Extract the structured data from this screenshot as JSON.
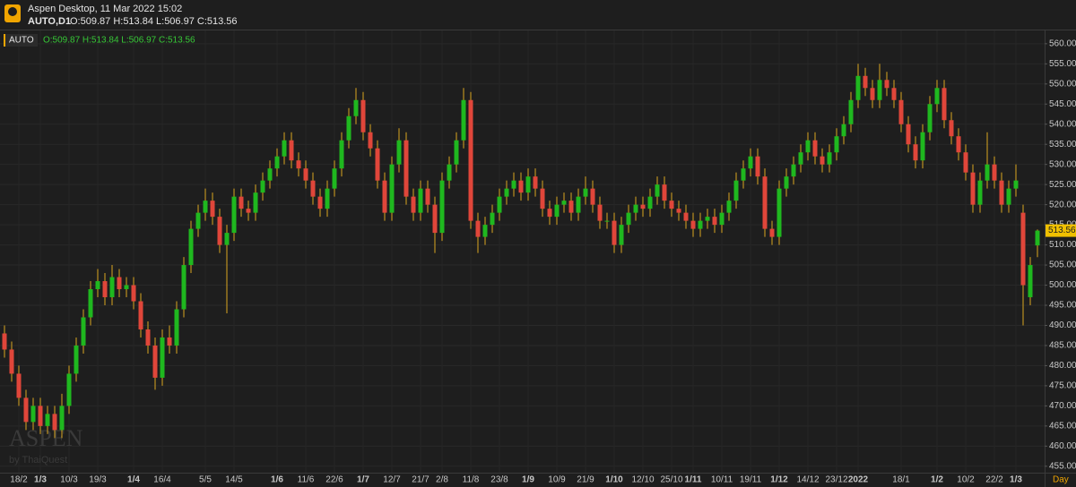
{
  "header": {
    "app": "Aspen Desktop, 11 Mar 2022 15:02",
    "symbol": "AUTO,D1",
    "ohlc": "O:509.87 H:513.84 L:506.97 C:513.56"
  },
  "chart_data": {
    "type": "candlestick",
    "symbol": "AUTO",
    "ohlc_label": "O:509.87 H:513.84 L:506.97 C:513.56",
    "watermark": "ASPEN",
    "watermark_sub": "by ThaiQuest",
    "x_axis_unit": "Day",
    "up_color": "#1fb81f",
    "down_color": "#e0463a",
    "wick_color": "#d9a520",
    "grid": true,
    "categories": [
      null,
      null,
      "18/2",
      null,
      null,
      "1/3",
      null,
      null,
      null,
      "10/3",
      null,
      null,
      null,
      "19/3",
      null,
      null,
      null,
      null,
      "1/4",
      null,
      null,
      null,
      "16/4",
      null,
      null,
      null,
      null,
      null,
      "5/5",
      null,
      null,
      null,
      "14/5",
      null,
      null,
      null,
      null,
      null,
      "1/6",
      null,
      null,
      null,
      "11/6",
      null,
      null,
      null,
      "22/6",
      null,
      null,
      null,
      "1/7",
      null,
      null,
      null,
      "12/7",
      null,
      null,
      null,
      "21/7",
      null,
      null,
      "2/8",
      null,
      null,
      null,
      "11/8",
      null,
      null,
      null,
      "23/8",
      null,
      null,
      null,
      "1/9",
      null,
      null,
      null,
      "10/9",
      null,
      null,
      null,
      "21/9",
      null,
      null,
      null,
      "1/10",
      null,
      null,
      null,
      "12/10",
      null,
      null,
      null,
      "25/10",
      null,
      null,
      "1/11",
      null,
      null,
      null,
      "10/11",
      null,
      null,
      null,
      "19/11",
      null,
      null,
      null,
      "1/12",
      null,
      null,
      null,
      "14/12",
      null,
      null,
      null,
      "23/12",
      null,
      null,
      "2022",
      null,
      null,
      null,
      null,
      null,
      "18/1",
      null,
      null,
      null,
      null,
      "1/2",
      null,
      null,
      null,
      "10/2",
      null,
      null,
      null,
      "22/2",
      null,
      null,
      "1/3",
      null,
      null,
      null
    ],
    "open": [
      488,
      484,
      478,
      472,
      466,
      470,
      465,
      468,
      464,
      470,
      478,
      485,
      492,
      499,
      501,
      497,
      502,
      499,
      500,
      496,
      489,
      485,
      477,
      487,
      485,
      494,
      505,
      514,
      518,
      521,
      517,
      510,
      513,
      522,
      519,
      518,
      523,
      526,
      529,
      532,
      536,
      531,
      529,
      526,
      522,
      519,
      524,
      529,
      536,
      542,
      546,
      538,
      534,
      526,
      518,
      530,
      536,
      522,
      518,
      524,
      520,
      513,
      526,
      530,
      536,
      546,
      516,
      512,
      515,
      518,
      522,
      524,
      526,
      523,
      527,
      524,
      519,
      517,
      520,
      521,
      518,
      522,
      524,
      520,
      516,
      516,
      510,
      515,
      518,
      520,
      519,
      522,
      525,
      521,
      519,
      518,
      516,
      514,
      516,
      517,
      515,
      518,
      521,
      526,
      529,
      532,
      527,
      514,
      512,
      524,
      527,
      530,
      533,
      536,
      532,
      530,
      533,
      537,
      540,
      546,
      552,
      549,
      546,
      551,
      549,
      546,
      540,
      535,
      531,
      538,
      545,
      549,
      541,
      537,
      533,
      528,
      520,
      526,
      530,
      526,
      520,
      524,
      518,
      497,
      509.87
    ],
    "high": [
      490,
      486,
      480,
      474,
      472,
      472,
      470,
      470,
      473,
      480,
      487,
      494,
      501,
      504,
      503,
      505,
      504,
      502,
      502,
      498,
      491,
      487,
      489,
      490,
      496,
      507,
      516,
      520,
      524,
      523,
      519,
      515,
      524,
      524,
      521,
      525,
      528,
      531,
      534,
      538,
      538,
      533,
      531,
      528,
      524,
      526,
      531,
      538,
      544,
      549,
      548,
      540,
      536,
      528,
      532,
      539,
      538,
      524,
      526,
      526,
      522,
      528,
      532,
      538,
      549,
      548,
      518,
      517,
      520,
      524,
      526,
      528,
      528,
      529,
      529,
      526,
      521,
      522,
      523,
      523,
      524,
      527,
      526,
      522,
      518,
      518,
      517,
      520,
      522,
      522,
      524,
      527,
      527,
      523,
      521,
      520,
      518,
      518,
      519,
      519,
      520,
      523,
      528,
      531,
      534,
      534,
      529,
      516,
      526,
      529,
      532,
      535,
      538,
      538,
      534,
      535,
      539,
      542,
      548,
      555,
      554,
      551,
      555,
      553,
      551,
      548,
      542,
      537,
      540,
      547,
      551,
      551,
      543,
      539,
      535,
      530,
      528,
      538,
      532,
      528,
      526,
      530,
      520,
      507,
      513.84
    ],
    "low": [
      482,
      476,
      470,
      464,
      464,
      463,
      463,
      462,
      462,
      468,
      476,
      483,
      490,
      497,
      495,
      495,
      497,
      497,
      494,
      487,
      483,
      474,
      475,
      483,
      483,
      492,
      503,
      512,
      516,
      515,
      508,
      493,
      511,
      517,
      516,
      516,
      521,
      524,
      527,
      530,
      529,
      527,
      524,
      520,
      517,
      517,
      522,
      527,
      534,
      540,
      536,
      532,
      524,
      516,
      516,
      528,
      520,
      516,
      516,
      518,
      508,
      511,
      524,
      528,
      534,
      514,
      508,
      510,
      513,
      516,
      520,
      522,
      521,
      521,
      522,
      517,
      515,
      515,
      518,
      516,
      516,
      520,
      518,
      514,
      514,
      508,
      508,
      513,
      516,
      517,
      517,
      520,
      519,
      517,
      516,
      514,
      512,
      512,
      514,
      513,
      513,
      516,
      519,
      524,
      527,
      525,
      512,
      510,
      510,
      522,
      525,
      528,
      531,
      530,
      528,
      528,
      531,
      535,
      538,
      544,
      547,
      544,
      544,
      547,
      544,
      538,
      533,
      529,
      529,
      536,
      543,
      539,
      535,
      531,
      526,
      518,
      518,
      524,
      524,
      518,
      518,
      522,
      490,
      495,
      506.97
    ],
    "close": [
      484,
      478,
      472,
      466,
      470,
      465,
      468,
      464,
      470,
      478,
      485,
      492,
      499,
      501,
      497,
      502,
      499,
      500,
      496,
      489,
      485,
      477,
      487,
      485,
      494,
      505,
      514,
      518,
      521,
      517,
      510,
      513,
      522,
      519,
      518,
      523,
      526,
      529,
      532,
      536,
      531,
      529,
      526,
      522,
      519,
      524,
      529,
      536,
      542,
      546,
      538,
      534,
      526,
      518,
      530,
      536,
      522,
      518,
      524,
      520,
      513,
      526,
      530,
      536,
      546,
      516,
      512,
      515,
      518,
      522,
      524,
      526,
      523,
      527,
      524,
      519,
      517,
      520,
      521,
      518,
      522,
      524,
      520,
      516,
      516,
      510,
      515,
      518,
      520,
      519,
      522,
      525,
      521,
      519,
      518,
      516,
      514,
      516,
      517,
      515,
      518,
      521,
      526,
      529,
      532,
      527,
      514,
      512,
      524,
      527,
      530,
      533,
      536,
      532,
      530,
      533,
      537,
      540,
      546,
      552,
      549,
      546,
      551,
      549,
      546,
      540,
      535,
      531,
      538,
      545,
      549,
      541,
      537,
      533,
      528,
      520,
      526,
      530,
      526,
      520,
      524,
      526,
      500,
      505,
      513.56
    ],
    "ylim": [
      453.4,
      563.3
    ],
    "yticks": [
      {
        "value": 455,
        "label": "455.00"
      },
      {
        "value": 460,
        "label": "460.00"
      },
      {
        "value": 465,
        "label": "465.00"
      },
      {
        "value": 470,
        "label": "470.00"
      },
      {
        "value": 475,
        "label": "475.00"
      },
      {
        "value": 480,
        "label": "480.00"
      },
      {
        "value": 485,
        "label": "485.00"
      },
      {
        "value": 490,
        "label": "490.00"
      },
      {
        "value": 495,
        "label": "495.00"
      },
      {
        "value": 500,
        "label": "500.00"
      },
      {
        "value": 505,
        "label": "505.00"
      },
      {
        "value": 510,
        "label": "510.00"
      },
      {
        "value": 515,
        "label": "515.00"
      },
      {
        "value": 520,
        "label": "520.00"
      },
      {
        "value": 525,
        "label": "525.00"
      },
      {
        "value": 530,
        "label": "530.00"
      },
      {
        "value": 535,
        "label": "535.00"
      },
      {
        "value": 540,
        "label": "540.00"
      },
      {
        "value": 545,
        "label": "545.00"
      },
      {
        "value": 550,
        "label": "550.00"
      },
      {
        "value": 555,
        "label": "555.00"
      },
      {
        "value": 560,
        "label": "560.00"
      }
    ]
  }
}
